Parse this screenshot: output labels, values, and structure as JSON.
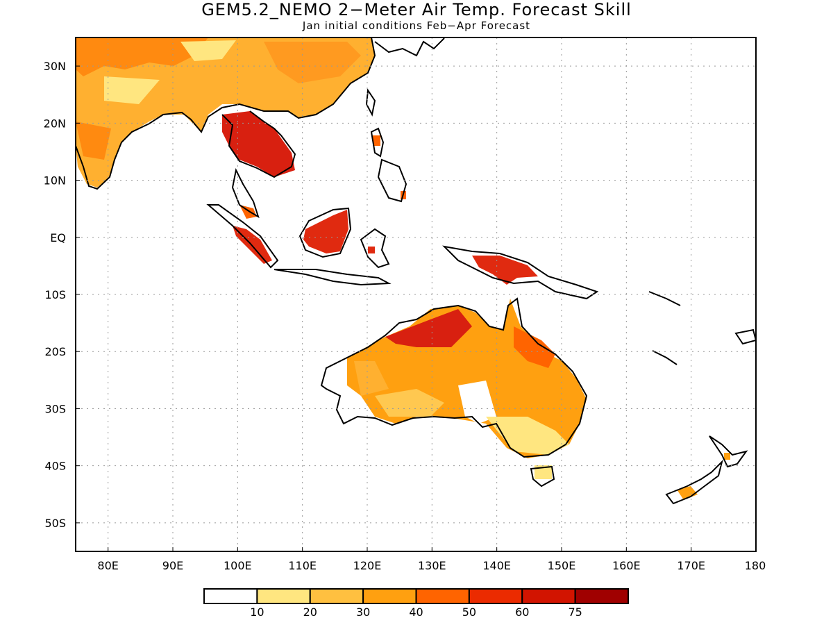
{
  "title": "GEM5.2_NEMO 2−Meter Air Temp. Forecast Skill",
  "subtitle": "Jan initial conditions  Feb−Apr Forecast",
  "map": {
    "lon_range": [
      75,
      180
    ],
    "lat_range": [
      -55,
      35
    ],
    "lat_ticks": [
      {
        "v": 30,
        "label": "30N"
      },
      {
        "v": 20,
        "label": "20N"
      },
      {
        "v": 10,
        "label": "10N"
      },
      {
        "v": 0,
        "label": "EQ"
      },
      {
        "v": -10,
        "label": "10S"
      },
      {
        "v": -20,
        "label": "20S"
      },
      {
        "v": -30,
        "label": "30S"
      },
      {
        "v": -40,
        "label": "40S"
      },
      {
        "v": -50,
        "label": "50S"
      }
    ],
    "lon_ticks": [
      {
        "v": 80,
        "label": "80E"
      },
      {
        "v": 90,
        "label": "90E"
      },
      {
        "v": 100,
        "label": "100E"
      },
      {
        "v": 110,
        "label": "110E"
      },
      {
        "v": 120,
        "label": "120E"
      },
      {
        "v": 130,
        "label": "130E"
      },
      {
        "v": 140,
        "label": "140E"
      },
      {
        "v": 150,
        "label": "150E"
      },
      {
        "v": 160,
        "label": "160E"
      },
      {
        "v": 170,
        "label": "170E"
      },
      {
        "v": 180,
        "label": "180"
      }
    ],
    "grid": true
  },
  "colorbar": {
    "colors": [
      "#ffffff",
      "#ffe680",
      "#ffc040",
      "#ffa010",
      "#ff6400",
      "#eb2b00",
      "#d21400",
      "#a00000"
    ],
    "labels": [
      "10",
      "20",
      "30",
      "40",
      "50",
      "60",
      "75"
    ]
  }
}
